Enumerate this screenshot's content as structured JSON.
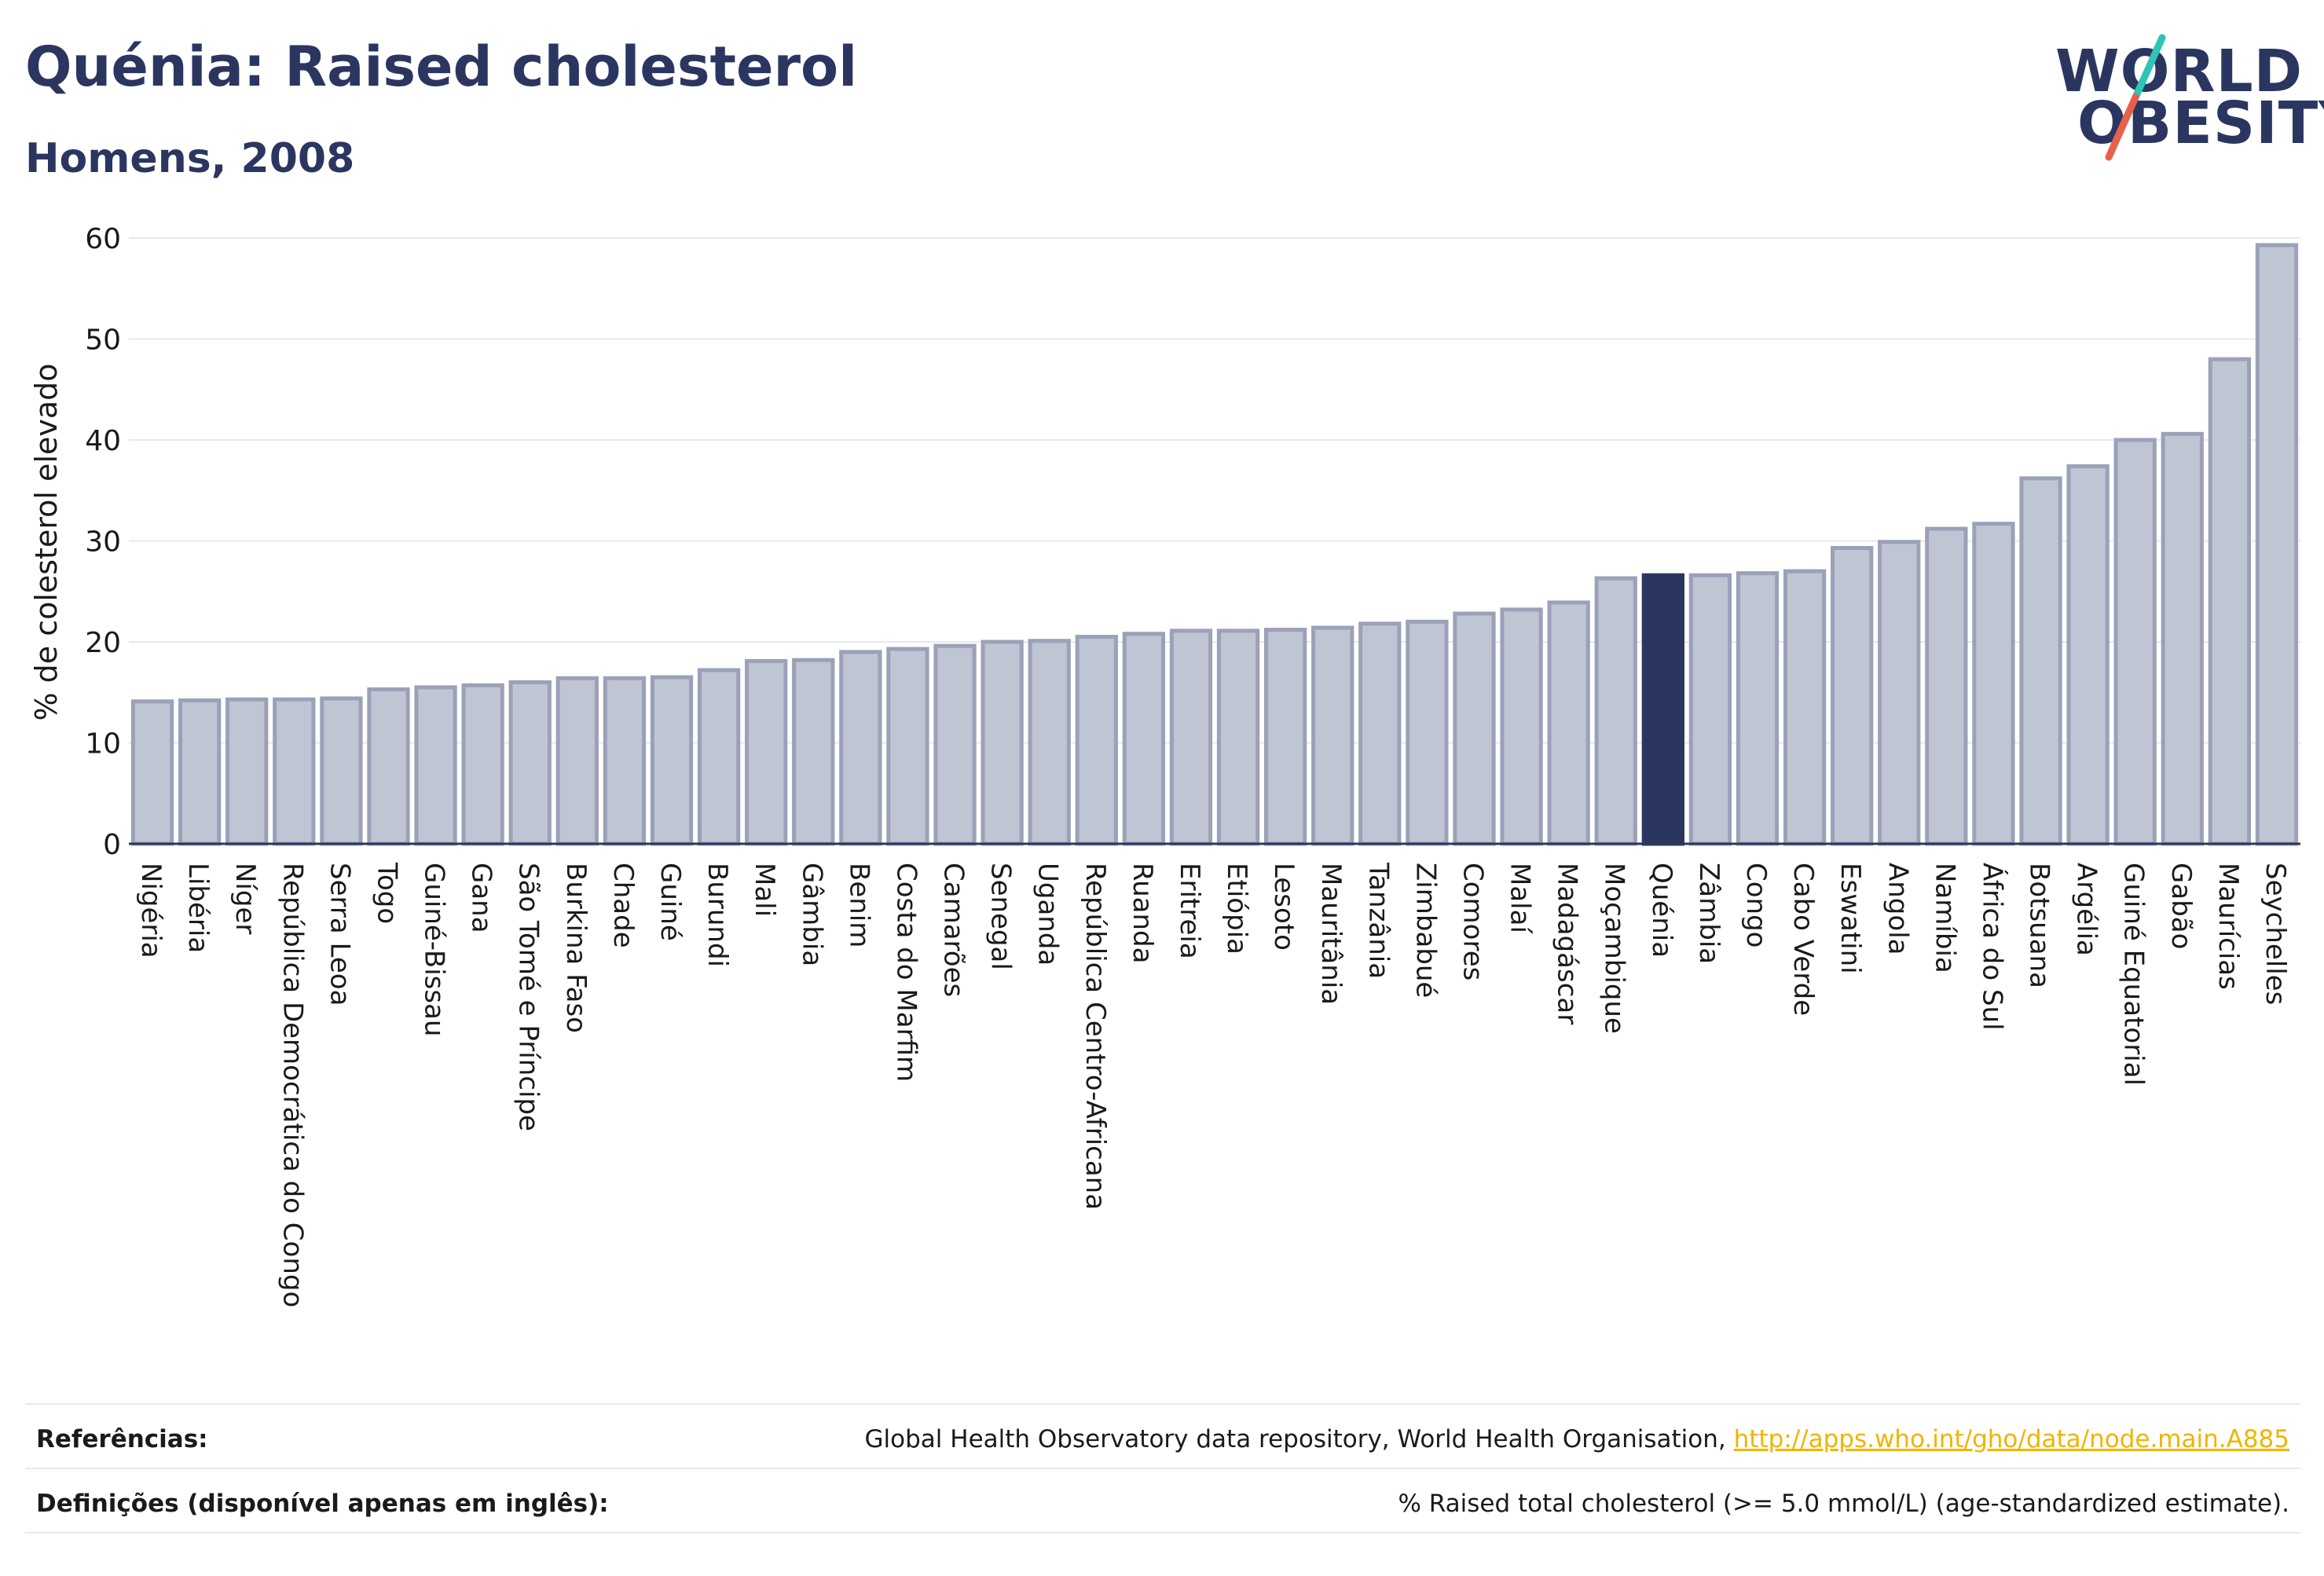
{
  "header": {
    "title": "Quénia: Raised cholesterol",
    "subtitle": "Homens, 2008"
  },
  "logo": {
    "line1": "WORLD",
    "line2": "OBESITY",
    "colors": {
      "text": "#2b3660",
      "accent_teal": "#2ec4b6",
      "accent_red": "#e8604c"
    }
  },
  "colors": {
    "bar_fill": "#c0c5d3",
    "bar_stroke": "#9aa1b8",
    "highlight_fill": "#2b3660",
    "grid": "#e6e8ee",
    "axis": "#2b3660",
    "text": "#1a1a1a"
  },
  "chart_data": {
    "type": "bar",
    "ylabel": "% de colesterol elevado",
    "xlabel": "",
    "ylim": [
      0,
      60
    ],
    "yticks": [
      0,
      10,
      20,
      30,
      40,
      50,
      60
    ],
    "grid": true,
    "highlight": "Quénia",
    "categories": [
      "Nigéria",
      "Libéria",
      "Níger",
      "República Democrática do Congo",
      "Serra Leoa",
      "Togo",
      "Guiné-Bissau",
      "Gana",
      "São Tomé e Príncipe",
      "Burkina Faso",
      "Chade",
      "Guiné",
      "Burundi",
      "Mali",
      "Gâmbia",
      "Benim",
      "Costa do Marfim",
      "Camarões",
      "Senegal",
      "Uganda",
      "República Centro-Africana",
      "Ruanda",
      "Eritreia",
      "Etiópia",
      "Lesoto",
      "Mauritânia",
      "Tanzânia",
      "Zimbabué",
      "Comores",
      "Malaí",
      "Madagáscar",
      "Moçambique",
      "Quénia",
      "Zâmbia",
      "Congo",
      "Cabo Verde",
      "Eswatini",
      "Angola",
      "Namíbia",
      "África do Sul",
      "Botsuana",
      "Argélia",
      "Guiné Equatorial",
      "Gabão",
      "Maurícias",
      "Seychelles"
    ],
    "values": [
      14.1,
      14.2,
      14.3,
      14.3,
      14.4,
      15.3,
      15.5,
      15.7,
      16.0,
      16.4,
      16.4,
      16.5,
      17.2,
      18.1,
      18.2,
      19.0,
      19.3,
      19.6,
      20.0,
      20.1,
      20.5,
      20.8,
      21.1,
      21.1,
      21.2,
      21.4,
      21.8,
      22.0,
      22.8,
      23.2,
      23.9,
      26.3,
      26.6,
      26.6,
      26.8,
      27.0,
      29.3,
      29.9,
      31.2,
      31.7,
      36.2,
      37.4,
      40.0,
      40.6,
      48.0,
      59.3
    ]
  },
  "footer": {
    "references_label": "Referências:",
    "references_text": "Global Health Observatory data repository, World Health Organisation,",
    "references_link": "http://apps.who.int/gho/data/node.main.A885",
    "definitions_label": "Definições (disponível apenas em inglês):",
    "definitions_text": "% Raised total cholesterol (>= 5.0 mmol/L) (age-standardized estimate)."
  }
}
